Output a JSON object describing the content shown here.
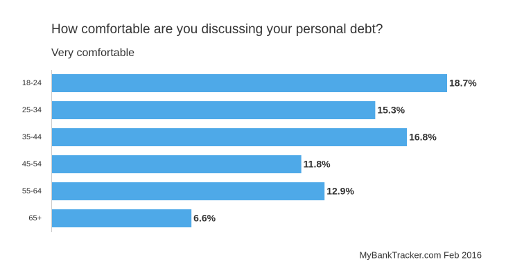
{
  "chart_data": {
    "type": "bar",
    "orientation": "horizontal",
    "title": "How comfortable are you discussing your personal debt?",
    "subtitle": "Very comfortable",
    "source": "MyBankTracker.com Feb 2016",
    "categories": [
      "18-24",
      "25-34",
      "35-44",
      "45-54",
      "55-64",
      "65+"
    ],
    "values": [
      18.7,
      15.3,
      16.8,
      11.8,
      12.9,
      6.6
    ],
    "value_labels": [
      "18.7%",
      "15.3%",
      "16.8%",
      "11.8%",
      "12.9%",
      "6.6%"
    ],
    "color": "#4ea9e8"
  }
}
